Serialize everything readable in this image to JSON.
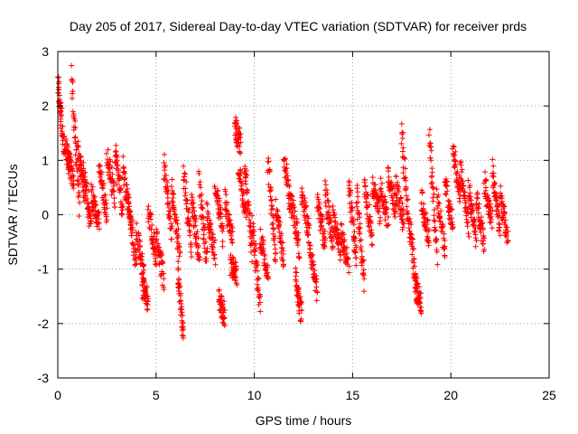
{
  "chart_data": {
    "type": "scatter",
    "title": "Day 205 of 2017, Sidereal Day-to-day VTEC variation (SDTVAR) for receiver prds",
    "xlabel": "GPS time / hours",
    "ylabel": "SDTVAR / TECUs",
    "xlim": [
      0,
      25
    ],
    "ylim": [
      -3,
      3
    ],
    "xticks": [
      "0",
      "5",
      "10",
      "15",
      "20",
      "25"
    ],
    "yticks": [
      "-3",
      "-2",
      "-1",
      "0",
      "1",
      "2",
      "3"
    ],
    "grid": true,
    "marker": "+",
    "series": [
      {
        "name": "SDTVAR",
        "color": "#ff0000",
        "segments": [
          {
            "x0": 0.0,
            "x1": 0.2,
            "y0": 2.5,
            "y1": 1.7
          },
          {
            "x0": 0.2,
            "x1": 0.6,
            "y0": 1.5,
            "y1": 0.9
          },
          {
            "x0": 0.5,
            "x1": 0.8,
            "y0": 1.1,
            "y1": 0.6
          },
          {
            "x0": 0.7,
            "x1": 1.1,
            "y0": 2.6,
            "y1": 0.1
          },
          {
            "x0": 1.0,
            "x1": 1.4,
            "y0": 1.2,
            "y1": 0.4
          },
          {
            "x0": 1.3,
            "x1": 1.7,
            "y0": 0.9,
            "y1": -0.3
          },
          {
            "x0": 1.7,
            "x1": 2.1,
            "y0": 0.4,
            "y1": -0.2
          },
          {
            "x0": 2.1,
            "x1": 2.5,
            "y0": 0.9,
            "y1": 0.0
          },
          {
            "x0": 2.5,
            "x1": 2.9,
            "y0": 1.1,
            "y1": 0.3
          },
          {
            "x0": 2.9,
            "x1": 3.3,
            "y0": 1.2,
            "y1": 0.1
          },
          {
            "x0": 3.3,
            "x1": 3.7,
            "y0": 0.9,
            "y1": -0.2
          },
          {
            "x0": 3.6,
            "x1": 4.0,
            "y0": 0.2,
            "y1": -0.9
          },
          {
            "x0": 4.0,
            "x1": 4.4,
            "y0": -0.3,
            "y1": -1.2
          },
          {
            "x0": 4.3,
            "x1": 4.6,
            "y0": -1.3,
            "y1": -1.6
          },
          {
            "x0": 4.6,
            "x1": 5.0,
            "y0": 0.1,
            "y1": -0.8
          },
          {
            "x0": 5.0,
            "x1": 5.4,
            "y0": -0.4,
            "y1": -1.2
          },
          {
            "x0": 5.4,
            "x1": 5.8,
            "y0": 0.9,
            "y1": -0.3
          },
          {
            "x0": 5.8,
            "x1": 6.2,
            "y0": 0.5,
            "y1": -0.7
          },
          {
            "x0": 6.1,
            "x1": 6.4,
            "y0": -1.0,
            "y1": -2.3
          },
          {
            "x0": 6.4,
            "x1": 6.8,
            "y0": 0.8,
            "y1": -0.6
          },
          {
            "x0": 6.8,
            "x1": 7.2,
            "y0": 0.3,
            "y1": -0.8
          },
          {
            "x0": 7.2,
            "x1": 7.6,
            "y0": 0.6,
            "y1": -0.9
          },
          {
            "x0": 7.6,
            "x1": 8.0,
            "y0": 0.0,
            "y1": -0.7
          },
          {
            "x0": 8.0,
            "x1": 8.4,
            "y0": 0.6,
            "y1": -0.4
          },
          {
            "x0": 8.2,
            "x1": 8.5,
            "y0": -1.5,
            "y1": -1.9
          },
          {
            "x0": 8.5,
            "x1": 8.9,
            "y0": 0.3,
            "y1": -0.5
          },
          {
            "x0": 8.8,
            "x1": 9.1,
            "y0": -0.9,
            "y1": -1.1
          },
          {
            "x0": 9.0,
            "x1": 9.3,
            "y0": 1.6,
            "y1": 1.3
          },
          {
            "x0": 9.2,
            "x1": 9.6,
            "y0": 0.9,
            "y1": 0.0
          },
          {
            "x0": 9.5,
            "x1": 9.9,
            "y0": 1.0,
            "y1": -0.7
          },
          {
            "x0": 9.9,
            "x1": 10.3,
            "y0": -0.2,
            "y1": -1.7
          },
          {
            "x0": 10.3,
            "x1": 10.7,
            "y0": -0.4,
            "y1": -1.1
          },
          {
            "x0": 10.7,
            "x1": 11.1,
            "y0": 1.0,
            "y1": -0.8
          },
          {
            "x0": 11.1,
            "x1": 11.5,
            "y0": 0.1,
            "y1": -0.9
          },
          {
            "x0": 11.5,
            "x1": 11.9,
            "y0": 1.1,
            "y1": 0.0
          },
          {
            "x0": 11.9,
            "x1": 12.3,
            "y0": 0.2,
            "y1": -0.6
          },
          {
            "x0": 12.1,
            "x1": 12.4,
            "y0": -1.2,
            "y1": -1.8
          },
          {
            "x0": 12.4,
            "x1": 12.8,
            "y0": 0.4,
            "y1": -0.4
          },
          {
            "x0": 12.8,
            "x1": 13.2,
            "y0": -0.6,
            "y1": -1.4
          },
          {
            "x0": 13.2,
            "x1": 13.6,
            "y0": 0.3,
            "y1": -0.6
          },
          {
            "x0": 13.6,
            "x1": 14.0,
            "y0": 0.4,
            "y1": -0.5
          },
          {
            "x0": 14.0,
            "x1": 14.4,
            "y0": 0.0,
            "y1": -0.7
          },
          {
            "x0": 14.4,
            "x1": 14.8,
            "y0": -0.3,
            "y1": -1.0
          },
          {
            "x0": 14.8,
            "x1": 15.2,
            "y0": 0.5,
            "y1": -0.8
          },
          {
            "x0": 15.2,
            "x1": 15.6,
            "y0": 0.4,
            "y1": -1.2
          },
          {
            "x0": 15.6,
            "x1": 16.0,
            "y0": 0.5,
            "y1": -0.4
          },
          {
            "x0": 16.0,
            "x1": 16.4,
            "y0": 0.6,
            "y1": 0.0
          },
          {
            "x0": 16.4,
            "x1": 16.8,
            "y0": 0.5,
            "y1": -0.1
          },
          {
            "x0": 16.8,
            "x1": 17.2,
            "y0": 0.7,
            "y1": 0.1
          },
          {
            "x0": 17.2,
            "x1": 17.6,
            "y0": 0.6,
            "y1": -0.2
          },
          {
            "x0": 17.5,
            "x1": 17.9,
            "y0": 1.5,
            "y1": -0.3
          },
          {
            "x0": 17.9,
            "x1": 18.3,
            "y0": -0.2,
            "y1": -1.5
          },
          {
            "x0": 18.2,
            "x1": 18.5,
            "y0": -1.3,
            "y1": -1.6
          },
          {
            "x0": 18.5,
            "x1": 18.9,
            "y0": 0.3,
            "y1": -0.5
          },
          {
            "x0": 18.9,
            "x1": 19.3,
            "y0": 1.5,
            "y1": -0.8
          },
          {
            "x0": 19.3,
            "x1": 19.7,
            "y0": 0.3,
            "y1": -0.6
          },
          {
            "x0": 19.7,
            "x1": 20.1,
            "y0": 0.6,
            "y1": -0.2
          },
          {
            "x0": 20.1,
            "x1": 20.5,
            "y0": 1.2,
            "y1": 0.3
          },
          {
            "x0": 20.5,
            "x1": 20.9,
            "y0": 0.8,
            "y1": -0.2
          },
          {
            "x0": 20.9,
            "x1": 21.3,
            "y0": 0.5,
            "y1": -0.5
          },
          {
            "x0": 21.3,
            "x1": 21.7,
            "y0": 0.3,
            "y1": -0.5
          },
          {
            "x0": 21.7,
            "x1": 22.1,
            "y0": 0.6,
            "y1": -0.1
          },
          {
            "x0": 22.1,
            "x1": 22.5,
            "y0": 0.8,
            "y1": -0.3
          },
          {
            "x0": 22.5,
            "x1": 22.9,
            "y0": 0.4,
            "y1": -0.5
          }
        ]
      }
    ]
  }
}
